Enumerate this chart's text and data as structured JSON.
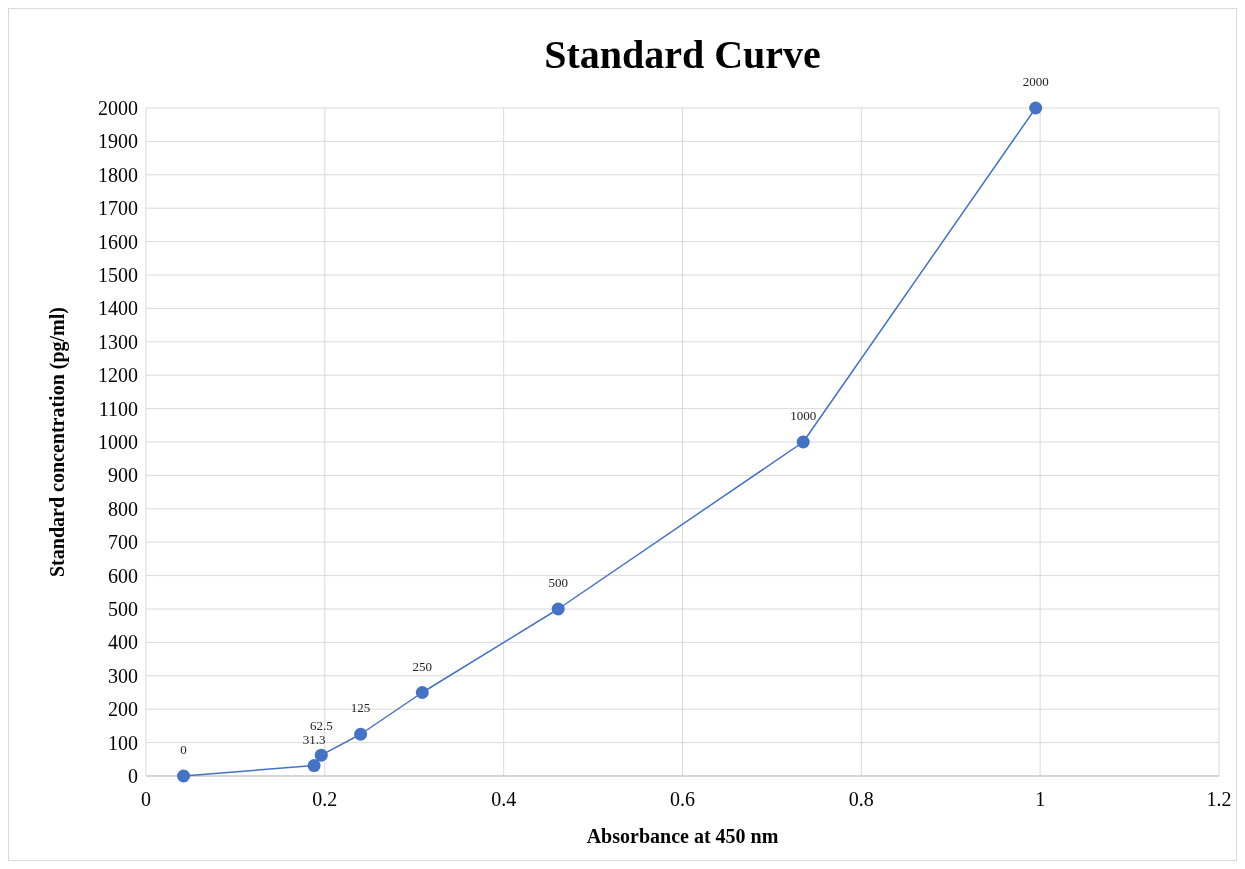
{
  "chart_data": {
    "type": "line",
    "title": "Standard Curve",
    "xlabel": "Absorbance at 450 nm",
    "ylabel": "Standard concentration (pg/ml)",
    "x": [
      0.042,
      0.188,
      0.196,
      0.24,
      0.309,
      0.461,
      0.735,
      0.995
    ],
    "series": [
      {
        "color": "#4472c4",
        "values": [
          0,
          31.3,
          62.5,
          125,
          250,
          500,
          1000,
          2000
        ]
      }
    ],
    "xlim": [
      0,
      1.2
    ],
    "xticks": [
      0,
      0.2,
      0.4,
      0.6,
      0.8,
      1,
      1.2
    ],
    "ylim": [
      0,
      2000
    ],
    "yticks": [
      0,
      100,
      200,
      300,
      400,
      500,
      600,
      700,
      800,
      900,
      1000,
      1100,
      1200,
      1300,
      1400,
      1500,
      1600,
      1700,
      1800,
      1900,
      2000
    ],
    "grid": true,
    "marker": "circle",
    "line_style": "solid",
    "data_labels": true
  }
}
